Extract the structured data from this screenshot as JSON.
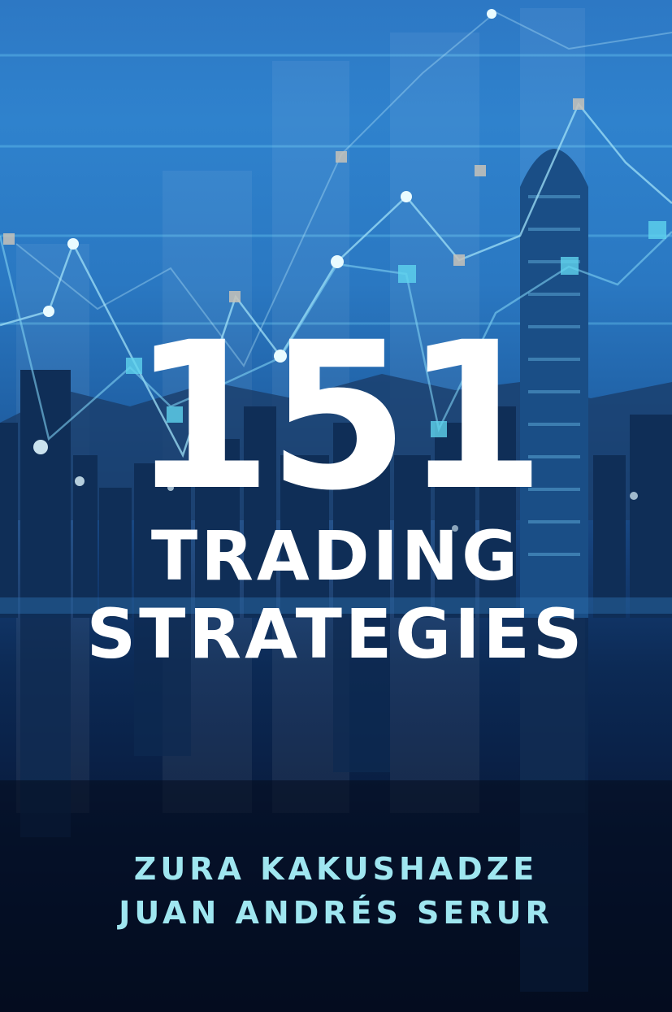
{
  "book": {
    "title_number": "151",
    "title_line_1": "TRADING",
    "title_line_2": "STRATEGIES",
    "authors": [
      "ZURA KAKUSHADZE",
      "JUAN ANDRÉS SERUR"
    ]
  },
  "colors": {
    "sky_top": "#2f82cd",
    "night_bottom": "#050f24",
    "title": "#ffffff",
    "authors": "#9fe6f0"
  }
}
